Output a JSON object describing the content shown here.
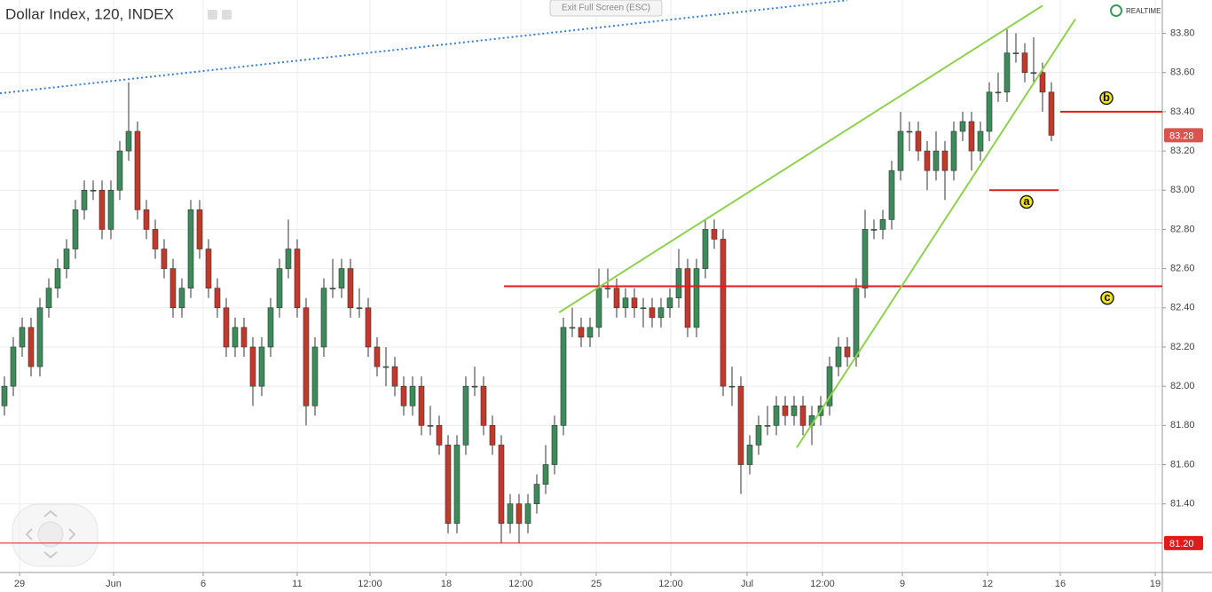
{
  "chart_data": {
    "type": "candlestick",
    "title": "Dollar Index, 120, INDEX",
    "fullscreen_button": "Exit Full Screen (ESC)",
    "status": "REALTIME",
    "up_color": "#3d8b5a",
    "down_color": "#c0392b",
    "ylim": [
      81.05,
      83.97
    ],
    "yticks": [
      {
        "value": 81.4,
        "label": "81.40"
      },
      {
        "value": 81.6,
        "label": "81.60"
      },
      {
        "value": 81.8,
        "label": "81.80"
      },
      {
        "value": 82,
        "label": "82.00"
      },
      {
        "value": 82.2,
        "label": "82.20"
      },
      {
        "value": 82.4,
        "label": "82.40"
      },
      {
        "value": 82.6,
        "label": "82.60"
      },
      {
        "value": 82.8,
        "label": "82.80"
      },
      {
        "value": 83,
        "label": "83.00"
      },
      {
        "value": 83.2,
        "label": "83.20"
      },
      {
        "value": 83.4,
        "label": "83.40"
      },
      {
        "value": 83.6,
        "label": "83.60"
      },
      {
        "value": 83.8,
        "label": "83.80"
      }
    ],
    "xlim": [
      -0.5,
      130.5
    ],
    "xticks": [
      {
        "value": 1.7,
        "label": "29"
      },
      {
        "value": 12.3,
        "label": "Jun"
      },
      {
        "value": 22.4,
        "label": "6"
      },
      {
        "value": 33,
        "label": "11"
      },
      {
        "value": 41.2,
        "label": "12:00"
      },
      {
        "value": 49.8,
        "label": "18"
      },
      {
        "value": 58.2,
        "label": "12:00"
      },
      {
        "value": 66.7,
        "label": "25"
      },
      {
        "value": 75.1,
        "label": "12:00"
      },
      {
        "value": 83.7,
        "label": "Jul"
      },
      {
        "value": 92.2,
        "label": "12:00"
      },
      {
        "value": 101.2,
        "label": "9"
      },
      {
        "value": 110.8,
        "label": "12"
      },
      {
        "value": 119,
        "label": "16"
      },
      {
        "value": 129.7,
        "label": "19"
      }
    ],
    "grid": true,
    "open": [
      81.9,
      82.0,
      82.2,
      82.3,
      82.1,
      82.4,
      82.5,
      82.6,
      82.7,
      82.9,
      83.0,
      83.0,
      82.8,
      83.0,
      83.2,
      83.3,
      82.9,
      82.8,
      82.7,
      82.6,
      82.4,
      82.5,
      82.9,
      82.7,
      82.5,
      82.4,
      82.2,
      82.3,
      82.2,
      82.0,
      82.2,
      82.4,
      82.6,
      82.7,
      82.4,
      81.9,
      82.2,
      82.5,
      82.5,
      82.6,
      82.4,
      82.4,
      82.2,
      82.1,
      82.1,
      82.0,
      81.9,
      82.0,
      81.8,
      81.8,
      81.7,
      81.3,
      81.7,
      82.0,
      82.0,
      81.8,
      81.7,
      81.3,
      81.4,
      81.3,
      81.4,
      81.5,
      81.6,
      81.8,
      82.3,
      82.3,
      82.25,
      82.3,
      82.5,
      82.5,
      82.4,
      82.45,
      82.4,
      82.4,
      82.35,
      82.4,
      82.45,
      82.6,
      82.3,
      82.6,
      82.8,
      82.75,
      82.0,
      82.0,
      81.6,
      81.7,
      81.8,
      81.8,
      81.9,
      81.85,
      81.9,
      81.8,
      81.85,
      81.9,
      82.1,
      82.2,
      82.15,
      82.5,
      82.8,
      82.8,
      82.85,
      83.1,
      83.3,
      83.3,
      83.2,
      83.1,
      83.2,
      83.1,
      83.3,
      83.35,
      83.2,
      83.3,
      83.5,
      83.5,
      83.7,
      83.7,
      83.6,
      83.6,
      83.5
    ],
    "high": [
      82.05,
      82.25,
      82.35,
      82.35,
      82.45,
      82.55,
      82.65,
      82.75,
      82.95,
      83.05,
      83.05,
      83.05,
      83.05,
      83.25,
      83.55,
      83.35,
      82.95,
      82.85,
      82.75,
      82.65,
      82.55,
      82.95,
      82.95,
      82.75,
      82.55,
      82.45,
      82.35,
      82.35,
      82.25,
      82.25,
      82.45,
      82.65,
      82.85,
      82.75,
      82.45,
      82.25,
      82.55,
      82.65,
      82.65,
      82.65,
      82.5,
      82.45,
      82.25,
      82.2,
      82.15,
      82.05,
      82.05,
      82.05,
      81.9,
      81.85,
      81.75,
      81.75,
      82.05,
      82.1,
      82.05,
      81.85,
      81.75,
      81.45,
      81.45,
      81.45,
      81.55,
      81.7,
      81.85,
      82.35,
      82.4,
      82.35,
      82.35,
      82.6,
      82.6,
      82.55,
      82.5,
      82.5,
      82.45,
      82.45,
      82.45,
      82.5,
      82.7,
      82.65,
      82.65,
      82.85,
      82.85,
      82.8,
      82.1,
      82.05,
      81.75,
      81.85,
      81.9,
      81.95,
      81.95,
      81.95,
      81.95,
      81.9,
      81.95,
      82.15,
      82.25,
      82.25,
      82.55,
      82.9,
      82.85,
      82.9,
      83.15,
      83.4,
      83.35,
      83.35,
      83.25,
      83.3,
      83.25,
      83.35,
      83.4,
      83.4,
      83.35,
      83.55,
      83.6,
      83.82,
      83.8,
      83.75,
      83.78,
      83.65,
      83.55
    ],
    "low": [
      81.85,
      81.95,
      82.15,
      82.05,
      82.05,
      82.35,
      82.45,
      82.55,
      82.65,
      82.85,
      82.95,
      82.75,
      82.75,
      82.95,
      83.15,
      82.85,
      82.75,
      82.65,
      82.55,
      82.35,
      82.35,
      82.45,
      82.65,
      82.45,
      82.35,
      82.15,
      82.15,
      82.15,
      81.9,
      81.95,
      82.15,
      82.35,
      82.55,
      82.35,
      81.8,
      81.85,
      82.15,
      82.45,
      82.45,
      82.35,
      82.35,
      82.15,
      82.05,
      82.0,
      81.95,
      81.85,
      81.85,
      81.75,
      81.75,
      81.65,
      81.25,
      81.25,
      81.65,
      81.95,
      81.75,
      81.65,
      81.2,
      81.25,
      81.2,
      81.25,
      81.35,
      81.45,
      81.55,
      81.75,
      82.25,
      82.2,
      82.2,
      82.25,
      82.45,
      82.35,
      82.35,
      82.35,
      82.3,
      82.3,
      82.3,
      82.35,
      82.4,
      82.25,
      82.25,
      82.55,
      82.7,
      81.95,
      81.9,
      81.45,
      81.55,
      81.65,
      81.75,
      81.75,
      81.8,
      81.8,
      81.75,
      81.7,
      81.8,
      81.85,
      82.05,
      82.1,
      82.1,
      82.45,
      82.75,
      82.75,
      82.8,
      83.05,
      83.2,
      83.15,
      83.0,
      83.05,
      82.95,
      83.05,
      83.25,
      83.1,
      83.15,
      83.25,
      83.45,
      83.45,
      83.65,
      83.55,
      83.55,
      83.4,
      83.25
    ],
    "close": [
      82.0,
      82.2,
      82.3,
      82.1,
      82.4,
      82.5,
      82.6,
      82.7,
      82.9,
      83.0,
      83.0,
      82.8,
      83.0,
      83.2,
      83.3,
      82.9,
      82.8,
      82.7,
      82.6,
      82.4,
      82.5,
      82.9,
      82.7,
      82.5,
      82.4,
      82.2,
      82.3,
      82.2,
      82.0,
      82.2,
      82.4,
      82.6,
      82.7,
      82.4,
      81.9,
      82.2,
      82.5,
      82.5,
      82.6,
      82.4,
      82.4,
      82.2,
      82.1,
      82.1,
      82.0,
      81.9,
      82.0,
      81.8,
      81.8,
      81.7,
      81.3,
      81.7,
      82.0,
      82.0,
      81.8,
      81.7,
      81.3,
      81.4,
      81.3,
      81.4,
      81.5,
      81.6,
      81.8,
      82.3,
      82.3,
      82.25,
      82.3,
      82.5,
      82.5,
      82.4,
      82.45,
      82.4,
      82.4,
      82.35,
      82.4,
      82.45,
      82.6,
      82.3,
      82.6,
      82.8,
      82.75,
      82.0,
      82.0,
      81.6,
      81.7,
      81.8,
      81.8,
      81.9,
      81.85,
      81.9,
      81.8,
      81.85,
      81.9,
      82.1,
      82.2,
      82.15,
      82.5,
      82.8,
      82.8,
      82.85,
      83.1,
      83.3,
      83.3,
      83.2,
      83.1,
      83.2,
      83.1,
      83.3,
      83.35,
      83.2,
      83.3,
      83.5,
      83.5,
      83.7,
      83.7,
      83.6,
      83.6,
      83.5,
      83.28
    ],
    "last_price": {
      "value": 83.28,
      "label": "83.28"
    },
    "levels": [
      {
        "value": 81.2,
        "label": "81.20"
      },
      {
        "value": 83.4,
        "x": [
          119,
          130.5
        ]
      },
      {
        "value": 83.0,
        "x": [
          111,
          118.8
        ]
      },
      {
        "value": 82.51,
        "x": [
          56.3,
          130.5
        ]
      }
    ],
    "trendlines": [
      {
        "color": "#8fd14f",
        "x": [
          62.5,
          117
        ],
        "y": [
          82.376,
          83.941
        ]
      },
      {
        "color": "#8fd14f",
        "x": [
          89.3,
          120.7
        ],
        "y": [
          81.687,
          83.873
        ]
      },
      {
        "color": "#3a7bd5",
        "dotted": true,
        "x": [
          -0.5,
          95
        ],
        "y": [
          83.494,
          83.969
        ]
      }
    ],
    "annotations": [
      {
        "text": "b",
        "x": 124.2,
        "y": 83.47
      },
      {
        "text": "a",
        "x": 115.2,
        "y": 82.94
      },
      {
        "text": "c",
        "x": 124.3,
        "y": 82.45
      }
    ]
  }
}
